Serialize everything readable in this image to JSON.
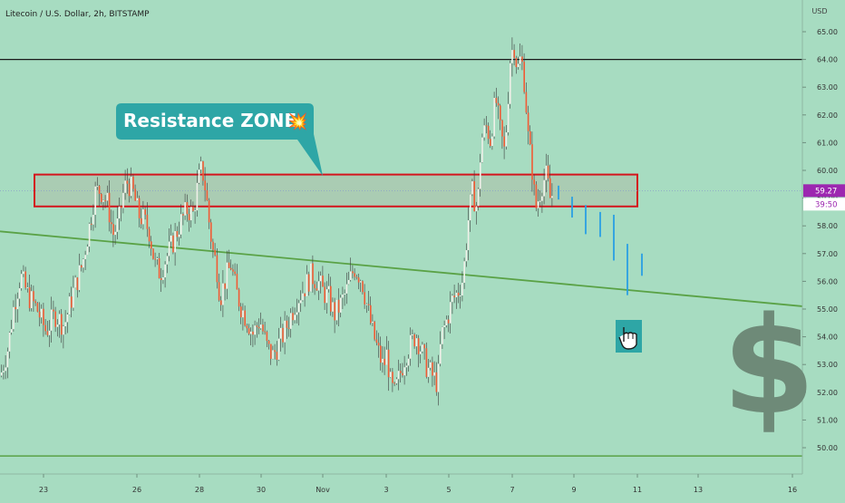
{
  "symbol_title": "Litecoin / U.S. Dollar, 2h, BITSTAMP",
  "currency": "USD",
  "colors": {
    "background": "#a7dcc1",
    "candle_up": "#efefe8",
    "candle_down": "#f05a35",
    "wick": "#3d3d3d",
    "resistance_border": "#d4141c",
    "trendline": "#5aa246",
    "horizontal_line": "#1a1a1a",
    "projection": "#2a9fe3",
    "callout": "#2ea6a6",
    "price_tag": "#9c27b0",
    "dollar_sign": "#6e8a78"
  },
  "annotation": {
    "label": "Resistance ZONE",
    "emoji": "💥",
    "icon": "pointing-hand-icon"
  },
  "price_label": {
    "price": "59.27",
    "countdown": "39:50"
  },
  "chart_data": {
    "type": "candlestick",
    "title": "Litecoin / U.S. Dollar, 2h, BITSTAMP",
    "ylabel": "USD",
    "ylim": [
      49.3,
      65.6
    ],
    "x_ticks": [
      "23",
      "26",
      "28",
      "30",
      "Nov",
      "3",
      "5",
      "7",
      "9",
      "11",
      "13",
      "16"
    ],
    "y_ticks": [
      "50.00",
      "51.00",
      "52.00",
      "53.00",
      "54.00",
      "55.00",
      "56.00",
      "57.00",
      "58.00",
      "59.00",
      "60.00",
      "61.00",
      "62.00",
      "63.00",
      "64.00",
      "65.00"
    ],
    "last_price": 59.27,
    "resistance_zone": [
      58.7,
      59.85
    ],
    "horizontal_levels": [
      64.0,
      49.7
    ],
    "trendline": {
      "start": 57.8,
      "end": 55.1
    },
    "approx_close_path": [
      [
        0,
        52.6
      ],
      [
        8,
        53.6
      ],
      [
        15,
        55.2
      ],
      [
        22,
        56.2
      ],
      [
        30,
        55.5
      ],
      [
        40,
        55.0
      ],
      [
        50,
        54.2
      ],
      [
        60,
        54.8
      ],
      [
        70,
        54.4
      ],
      [
        80,
        55.6
      ],
      [
        90,
        56.6
      ],
      [
        98,
        58.0
      ],
      [
        104,
        59.2
      ],
      [
        110,
        59.3
      ],
      [
        118,
        58.8
      ],
      [
        124,
        57.7
      ],
      [
        130,
        58.1
      ],
      [
        136,
        59.3
      ],
      [
        140,
        59.6
      ],
      [
        146,
        59.2
      ],
      [
        152,
        58.4
      ],
      [
        158,
        58.2
      ],
      [
        164,
        57.8
      ],
      [
        170,
        56.6
      ],
      [
        176,
        56.3
      ],
      [
        182,
        56.8
      ],
      [
        190,
        57.4
      ],
      [
        198,
        58.1
      ],
      [
        206,
        58.6
      ],
      [
        212,
        58.4
      ],
      [
        218,
        59.6
      ],
      [
        222,
        60.1
      ],
      [
        226,
        59.3
      ],
      [
        230,
        58.1
      ],
      [
        234,
        57.1
      ],
      [
        238,
        56.6
      ],
      [
        242,
        55.4
      ],
      [
        248,
        56.1
      ],
      [
        254,
        56.6
      ],
      [
        260,
        55.6
      ],
      [
        266,
        55.0
      ],
      [
        272,
        54.6
      ],
      [
        278,
        54.1
      ],
      [
        286,
        54.6
      ],
      [
        294,
        53.6
      ],
      [
        300,
        53.3
      ],
      [
        306,
        53.7
      ],
      [
        312,
        54.1
      ],
      [
        318,
        54.6
      ],
      [
        326,
        55.3
      ],
      [
        334,
        55.7
      ],
      [
        342,
        56.2
      ],
      [
        350,
        56.0
      ],
      [
        356,
        55.6
      ],
      [
        362,
        55.4
      ],
      [
        368,
        54.8
      ],
      [
        374,
        55.1
      ],
      [
        382,
        55.7
      ],
      [
        390,
        56.5
      ],
      [
        398,
        56.1
      ],
      [
        404,
        55.1
      ],
      [
        410,
        54.2
      ],
      [
        416,
        53.5
      ],
      [
        422,
        52.9
      ],
      [
        426,
        53.4
      ],
      [
        430,
        52.3
      ],
      [
        434,
        51.9
      ],
      [
        440,
        52.6
      ],
      [
        446,
        53.3
      ],
      [
        452,
        53.7
      ],
      [
        458,
        54.1
      ],
      [
        464,
        53.5
      ],
      [
        470,
        52.9
      ],
      [
        476,
        52.6
      ],
      [
        482,
        52.3
      ],
      [
        486,
        54.0
      ],
      [
        492,
        54.6
      ],
      [
        498,
        55.3
      ],
      [
        504,
        55.6
      ],
      [
        510,
        56.1
      ],
      [
        516,
        58.3
      ],
      [
        520,
        59.2
      ],
      [
        526,
        58.6
      ],
      [
        530,
        61.1
      ],
      [
        536,
        61.6
      ],
      [
        540,
        61.1
      ],
      [
        546,
        62.6
      ],
      [
        550,
        61.6
      ],
      [
        556,
        60.6
      ],
      [
        562,
        64.0
      ],
      [
        566,
        64.6
      ],
      [
        570,
        63.6
      ],
      [
        574,
        64.1
      ],
      [
        578,
        63.1
      ],
      [
        582,
        61.1
      ],
      [
        586,
        60.1
      ],
      [
        590,
        58.6
      ],
      [
        594,
        59.1
      ],
      [
        598,
        59.6
      ],
      [
        602,
        59.8
      ],
      [
        606,
        59.0
      ],
      [
        610,
        59.2
      ]
    ],
    "projected_path": [
      [
        616,
        59.45,
        58.95
      ],
      [
        631,
        59.05,
        58.3
      ],
      [
        646,
        58.75,
        57.7
      ],
      [
        662,
        58.5,
        57.6
      ],
      [
        677,
        58.4,
        56.75
      ],
      [
        692,
        57.35,
        55.5
      ],
      [
        708,
        57.0,
        56.2
      ]
    ]
  }
}
